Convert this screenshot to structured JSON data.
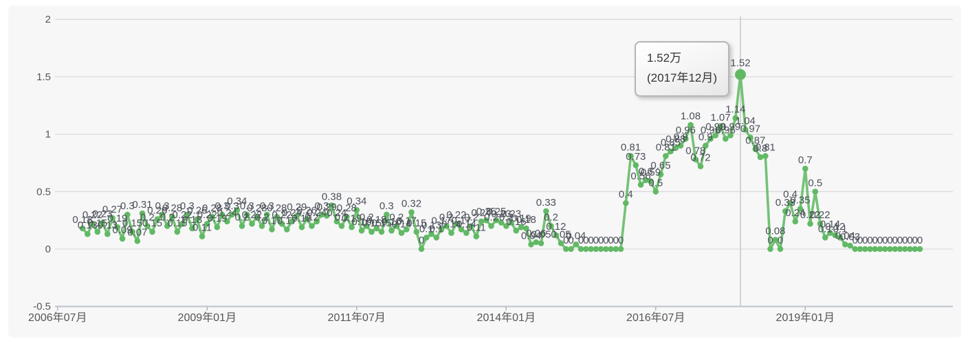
{
  "tooltip": {
    "value": "1.52万",
    "date": "(2017年12月)"
  },
  "colors": {
    "panel_bg": "#f7f7f8",
    "line": "#74c276",
    "dot": "#62b965",
    "grid": "#dbdbdf",
    "axis": "#c7ccd6",
    "crosshair": "#c9c9c9",
    "value_label": "#4b5058",
    "tick_label": "#555555"
  },
  "chart_data": {
    "type": "line",
    "title": "",
    "x_unit": "month",
    "x_start": "2006年12月",
    "x_end": "2020年12月",
    "x_tick_labels": [
      "2006年07月",
      "2009年01月",
      "2011年07月",
      "2014年01月",
      "2016年07月",
      "2019年01月"
    ],
    "x_tick_month_offsets": [
      -5,
      25,
      55,
      85,
      115,
      145
    ],
    "y_ticks": [
      2,
      1.5,
      1,
      0.5,
      0,
      -0.5
    ],
    "ylim": [
      -0.5,
      2
    ],
    "grid": true,
    "legend": false,
    "highlight": {
      "index": 132,
      "month": "2017年12月",
      "value": 1.52
    },
    "series": [
      {
        "name": "",
        "values": [
          0.18,
          0.13,
          0.22,
          0.15,
          0.23,
          0.13,
          0.27,
          0.19,
          0.09,
          0.3,
          0.15,
          0.07,
          0.31,
          0.2,
          0.15,
          0.26,
          0.3,
          0.2,
          0.28,
          0.15,
          0.22,
          0.3,
          0.18,
          0.26,
          0.11,
          0.22,
          0.28,
          0.19,
          0.3,
          0.24,
          0.3,
          0.34,
          0.2,
          0.3,
          0.22,
          0.28,
          0.2,
          0.3,
          0.17,
          0.28,
          0.22,
          0.17,
          0.24,
          0.29,
          0.19,
          0.26,
          0.2,
          0.24,
          0.3,
          0.29,
          0.38,
          0.24,
          0.2,
          0.28,
          0.19,
          0.34,
          0.16,
          0.2,
          0.15,
          0.18,
          0.15,
          0.3,
          0.16,
          0.2,
          0.14,
          0.17,
          0.32,
          0.15,
          0,
          0.1,
          0.13,
          0.1,
          0.17,
          0.2,
          0.14,
          0.22,
          0.17,
          0.14,
          0.2,
          0.11,
          0.24,
          0.25,
          0.2,
          0.25,
          0.23,
          0.2,
          0.23,
          0.16,
          0.19,
          0.18,
          0.04,
          0.06,
          0.05,
          0.33,
          0.2,
          0.12,
          0.05,
          0,
          0,
          0.04,
          0,
          0,
          0,
          0,
          0,
          0,
          0,
          0,
          0,
          0.4,
          0.81,
          0.73,
          0.56,
          0.6,
          0.59,
          0.5,
          0.65,
          0.81,
          0.85,
          0.88,
          0.9,
          0.96,
          1.08,
          0.78,
          0.72,
          0.9,
          0.96,
          0.99,
          1.07,
          0.96,
          0.99,
          1.14,
          1.52,
          1.04,
          0.97,
          0.87,
          0.8,
          0.81,
          0,
          0.08,
          0,
          0.33,
          0.4,
          0.24,
          0.35,
          0.7,
          0.22,
          0.5,
          0.22,
          0.1,
          0.14,
          0.12,
          0.1,
          0.04,
          0.03,
          0,
          0,
          0,
          0,
          0,
          0,
          0,
          0,
          0,
          0,
          0,
          0,
          0,
          0
        ]
      }
    ]
  }
}
